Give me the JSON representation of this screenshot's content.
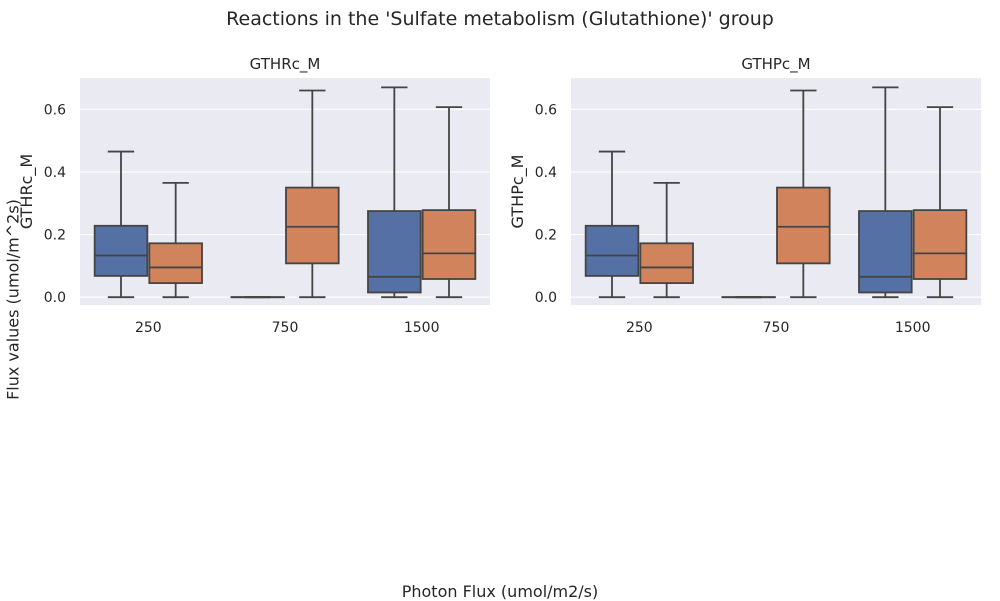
{
  "figure": {
    "title": "Reactions in the 'Sulfate metabolism (Glutathione)' group",
    "xlabel": "Photon Flux (umol/m2/s)",
    "ylabel": "Flux values (umol/m^2s)"
  },
  "colors": {
    "series_a": "#5470a5",
    "series_b": "#d1845c",
    "panel_bg": "#eaeaf2",
    "grid": "#ffffff",
    "line": "#444444"
  },
  "chart_data": [
    {
      "type": "box",
      "title": "GTHRc_M",
      "ylabel": "GTHRc_M",
      "categories": [
        "250",
        "750",
        "1500"
      ],
      "ylim": [
        -0.025,
        0.7
      ],
      "yticks": [
        0.0,
        0.2,
        0.4,
        0.6
      ],
      "ytick_labels": [
        "0.0",
        "0.2",
        "0.4",
        "0.6"
      ],
      "grid": true,
      "series": [
        {
          "boxes": [
            {
              "min": 0.0,
              "q1": 0.068,
              "median": 0.133,
              "q3": 0.228,
              "max": 0.465
            },
            {
              "min": 0.0,
              "q1": 0.0,
              "median": 0.0,
              "q3": 0.0,
              "max": 0.0
            },
            {
              "min": 0.0,
              "q1": 0.015,
              "median": 0.065,
              "q3": 0.275,
              "max": 0.67
            }
          ]
        },
        {
          "boxes": [
            {
              "min": 0.0,
              "q1": 0.045,
              "median": 0.095,
              "q3": 0.172,
              "max": 0.365
            },
            {
              "min": 0.0,
              "q1": 0.108,
              "median": 0.225,
              "q3": 0.35,
              "max": 0.66
            },
            {
              "min": 0.0,
              "q1": 0.058,
              "median": 0.14,
              "q3": 0.278,
              "max": 0.607
            }
          ]
        }
      ]
    },
    {
      "type": "box",
      "title": "GTHPc_M",
      "ylabel": "GTHPc_M",
      "categories": [
        "250",
        "750",
        "1500"
      ],
      "ylim": [
        -0.025,
        0.7
      ],
      "yticks": [
        0.0,
        0.2,
        0.4,
        0.6
      ],
      "ytick_labels": [
        "0.0",
        "0.2",
        "0.4",
        "0.6"
      ],
      "grid": true,
      "series": [
        {
          "boxes": [
            {
              "min": 0.0,
              "q1": 0.068,
              "median": 0.133,
              "q3": 0.228,
              "max": 0.465
            },
            {
              "min": 0.0,
              "q1": 0.0,
              "median": 0.0,
              "q3": 0.0,
              "max": 0.0
            },
            {
              "min": 0.0,
              "q1": 0.015,
              "median": 0.065,
              "q3": 0.275,
              "max": 0.67
            }
          ]
        },
        {
          "boxes": [
            {
              "min": 0.0,
              "q1": 0.045,
              "median": 0.095,
              "q3": 0.172,
              "max": 0.365
            },
            {
              "min": 0.0,
              "q1": 0.108,
              "median": 0.225,
              "q3": 0.35,
              "max": 0.66
            },
            {
              "min": 0.0,
              "q1": 0.058,
              "median": 0.14,
              "q3": 0.278,
              "max": 0.607
            }
          ]
        }
      ]
    }
  ]
}
